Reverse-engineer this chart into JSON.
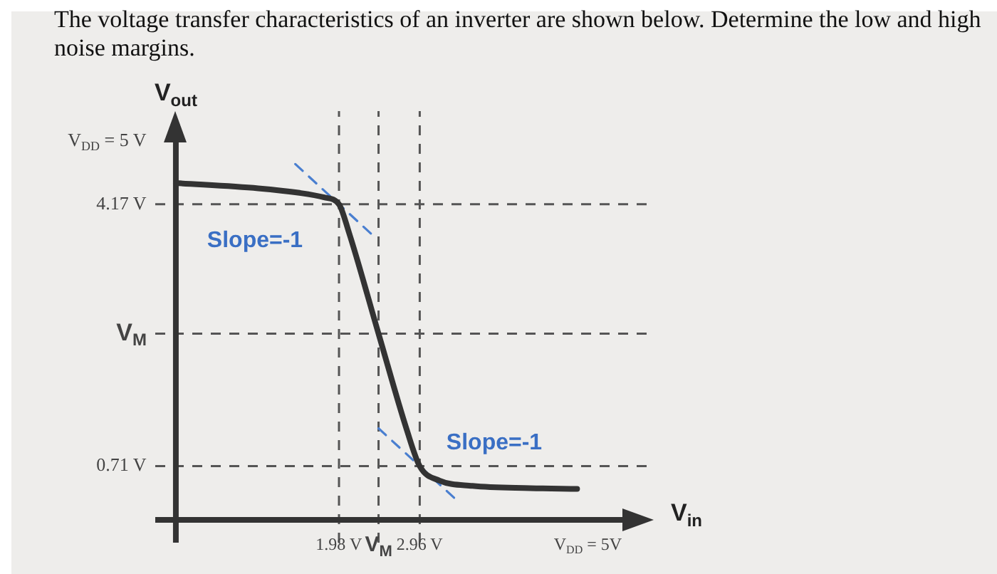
{
  "chart_data": {
    "type": "line",
    "title": "The voltage transfer characteristics of an inverter are shown below. Determine the low and high noise margins.",
    "xlabel": "V$_{in}$",
    "ylabel": "V$_{out}$",
    "xlim": [
      -0.25,
      5.8
    ],
    "ylim": [
      -0.3,
      5.4
    ],
    "xticks": [
      {
        "value": 1.98,
        "label": "1.98 V"
      },
      {
        "value": 2.46,
        "label": "V$_{M}$"
      },
      {
        "value": 2.96,
        "label": "2.96 V"
      },
      {
        "value": 5,
        "label": "V$_{DD}$ = 5V"
      }
    ],
    "yticks": [
      {
        "value": 0.71,
        "label": "0.71 V"
      },
      {
        "value": 2.46,
        "label": "V$_{M}$"
      },
      {
        "value": 4.17,
        "label": "4.17 V"
      },
      {
        "value": 5,
        "label": "V$_{DD}$ = 5 V"
      }
    ],
    "series": [
      {
        "color": "#333333",
        "line_style": "solid",
        "x": [
          0,
          1.0,
          1.5,
          1.8,
          1.98,
          2.1,
          2.46,
          2.8,
          2.96,
          3.2,
          3.6,
          4.3,
          4.87
        ],
        "values": [
          4.45,
          4.38,
          4.32,
          4.26,
          4.17,
          3.8,
          2.46,
          1.2,
          0.71,
          0.52,
          0.45,
          0.42,
          0.41
        ]
      },
      {
        "color": "#4a7fd0",
        "line_style": "dashed",
        "x": [
          1.45,
          2.4
        ],
        "values": [
          4.7,
          3.75
        ]
      },
      {
        "color": "#4a7fd0",
        "line_style": "dashed",
        "x": [
          2.46,
          3.43
        ],
        "values": [
          1.21,
          0.24
        ]
      }
    ],
    "ref_lines": [
      {
        "axis": "x",
        "value": 1.98,
        "color": "#555555",
        "line_style": "dashed"
      },
      {
        "axis": "x",
        "value": 2.46,
        "color": "#555555",
        "line_style": "dashed"
      },
      {
        "axis": "x",
        "value": 2.96,
        "color": "#555555",
        "line_style": "dashed"
      },
      {
        "axis": "y",
        "value": 0.71,
        "color": "#555555",
        "line_style": "dashed"
      },
      {
        "axis": "y",
        "value": 2.46,
        "color": "#555555",
        "line_style": "dashed"
      },
      {
        "axis": "y",
        "value": 4.17,
        "color": "#555555",
        "line_style": "dashed"
      }
    ],
    "annotations": [
      "Slope=-1",
      "Slope=-1"
    ],
    "marker": "none",
    "grid": false,
    "legend": false
  }
}
